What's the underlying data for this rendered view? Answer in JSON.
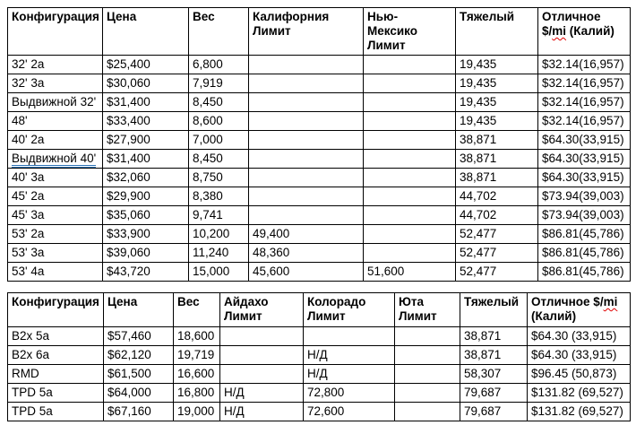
{
  "colors": {
    "background": "#ffffff",
    "text": "#000000",
    "table_border": "#000000",
    "spellcheck_underline": "#e00000",
    "grammar_underline": "#2e74b5"
  },
  "table1": {
    "headers": {
      "config": "Конфигурация",
      "price": "Цена",
      "weight": "Вес",
      "ca_limit": "Калифорния\nЛимит",
      "nm_limit": "Нью-\nМексико\nЛимит",
      "heavy": "Тяжелый",
      "excellent_prefix": "Отличное\n$/",
      "excellent_mi": "mi",
      "excellent_suffix": " (Калий)"
    },
    "rows": [
      [
        "32' 2a",
        "$25,400",
        "6,800",
        "",
        "",
        "19,435",
        "$32.14(16,957)"
      ],
      [
        "32' 3a",
        "$30,060",
        "7,919",
        "",
        "",
        "19,435",
        "$32.14(16,957)"
      ],
      [
        "Выдвижной 32'",
        "$31,400",
        "8,450",
        "",
        "",
        "19,435",
        "$32.14(16,957)"
      ],
      [
        "48'",
        "$33,400",
        "8,600",
        "",
        "",
        "19,435",
        "$32.14(16,957)"
      ],
      [
        "40' 2a",
        "$27,900",
        "7,000",
        "",
        "",
        "38,871",
        "$64.30(33,915)"
      ],
      [
        "Выдвижной 40'",
        "$31,400",
        "8,450",
        "",
        "",
        "38,871",
        "$64.30(33,915)"
      ],
      [
        "40' 3a",
        "$32,060",
        "8,750",
        "",
        "",
        "38,871",
        "$64.30(33,915)"
      ],
      [
        "45' 2a",
        "$29,900",
        "8,380",
        "",
        "",
        "44,702",
        "$73.94(39,003)"
      ],
      [
        "45' 3a",
        "$35,060",
        "9,741",
        "",
        "",
        "44,702",
        "$73.94(39,003)"
      ],
      [
        "53' 2a",
        "$33,900",
        "10,200",
        "49,400",
        "",
        "52,477",
        "$86.81(45,786)"
      ],
      [
        "53' 3a",
        "$39,060",
        "11,240",
        "48,360",
        "",
        "52,477",
        "$86.81(45,786)"
      ],
      [
        "53' 4a",
        "$43,720",
        "15,000",
        "45,600",
        "51,600",
        "52,477",
        "$86.81(45,786)"
      ]
    ],
    "grammar_mark": {
      "row": 5,
      "col": 0
    }
  },
  "table2": {
    "headers": {
      "config": "Конфигурация",
      "price": "Цена",
      "weight": "Вес",
      "id_limit": "Айдахо\nЛимит",
      "co_limit": "Колорадо\nЛимит",
      "ut_limit": "Юта\nЛимит",
      "heavy": "Тяжелый",
      "excellent_prefix": "Отличное $/",
      "excellent_mi": "mi",
      "excellent_suffix": "\n(Калий)"
    },
    "rows": [
      [
        "B2x 5a",
        "$57,460",
        "18,600",
        "",
        "",
        "",
        "38,871",
        "$64.30 (33,915)"
      ],
      [
        "B2x 6a",
        "$62,120",
        "19,719",
        "",
        "Н/Д",
        "",
        "38,871",
        "$64.30 (33,915)"
      ],
      [
        "RMD",
        "$61,500",
        "16,600",
        "",
        "Н/Д",
        "",
        "58,307",
        "$96.45 (50,873)"
      ],
      [
        "TPD 5a",
        "$64,000",
        "16,800",
        "Н/Д",
        "72,800",
        "",
        "79,687",
        "$131.82 (69,527)"
      ],
      [
        "TPD 5a",
        "$67,160",
        "19,000",
        "Н/Д",
        "72,600",
        "",
        "79,687",
        "$131.82 (69,527)"
      ]
    ],
    "grammar_mark": null
  }
}
